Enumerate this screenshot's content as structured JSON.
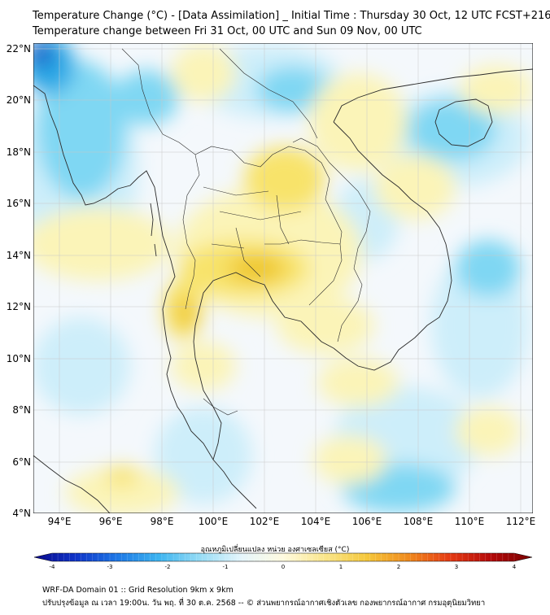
{
  "title_line1": "Temperature Change (°C) - [Data Assimilation] _ Initial Time : Thursday 30 Oct, 12 UTC FCST+216",
  "title_line2": "Temperature change between Fri 31 Oct, 00 UTC and Sun 09 Nov, 00 UTC",
  "map": {
    "lat_labels": [
      "22°N",
      "20°N",
      "18°N",
      "16°N",
      "14°N",
      "12°N",
      "10°N",
      "8°N",
      "6°N",
      "4°N"
    ],
    "lon_labels": [
      "94°E",
      "96°E",
      "98°E",
      "100°E",
      "102°E",
      "104°E",
      "106°E",
      "108°E",
      "110°E",
      "112°E"
    ],
    "colors": {
      "neutral": "#f4f8fc",
      "light_blue": "#cdeefa",
      "cyan": "#7fd7f3",
      "deep_blue": "#2aa8e6",
      "navy": "#1f5fc7",
      "pale_yellow": "#fbf4b8",
      "yellow": "#f8e36a",
      "gold": "#efc72f",
      "coast": "#2b2b2b",
      "grid": "#c8c8c8"
    }
  },
  "colorbar": {
    "title": "อุณหภูมิเปลี่ยนแปลง หน่วย องศาเซลเซียส (°C)",
    "ticks": [
      "-4",
      "-3",
      "-2",
      "-1",
      "0",
      "1",
      "2",
      "3",
      "4"
    ],
    "colors": [
      "#0a0a8c",
      "#1034c8",
      "#1e78e6",
      "#3cb4f0",
      "#96dcf5",
      "#e6f6fc",
      "#fffbe0",
      "#fae68c",
      "#f5c83c",
      "#f08c1e",
      "#e63c14",
      "#b40a0a",
      "#780000"
    ]
  },
  "footer_line1": "WRF-DA Domain 01 :: Grid Resolution 9km x 9km",
  "footer_line2": "ปรับปรุงข้อมูล ณ เวลา 19:00น. วัน พฤ. ที่ 30 ต.ค. 2568 -- © ส่วนพยากรณ์อากาศเชิงตัวเลข กองพยากรณ์อากาศ กรมอุตุนิยมวิทยา"
}
